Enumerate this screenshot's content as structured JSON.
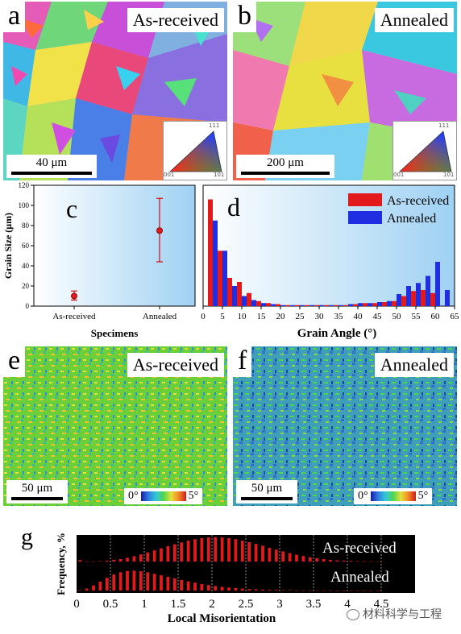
{
  "panel_a": {
    "letter": "a",
    "label": "As-received",
    "scale": "40 μm",
    "key_corners": [
      "111",
      "001",
      "101"
    ]
  },
  "panel_b": {
    "letter": "b",
    "label": "Annealed",
    "scale": "200 μm",
    "key_corners": [
      "111",
      "001",
      "101"
    ]
  },
  "panel_e": {
    "letter": "e",
    "label": "As-received",
    "scale": "50 μm",
    "cbar_min": "0°",
    "cbar_max": "5°"
  },
  "panel_f": {
    "letter": "f",
    "label": "Annealed",
    "scale": "50 μm",
    "cbar_min": "0°",
    "cbar_max": "5°"
  },
  "colors": {
    "as_received": "#e31a1c",
    "annealed": "#1f2ee0",
    "panel_bg": "#9fd1f3"
  },
  "chart_data": [
    {
      "id": "c",
      "type": "scatter",
      "letter": "c",
      "xlabel": "Specimens",
      "ylabel": "Grain Size (μm)",
      "categories": [
        "As-received",
        "Annealed"
      ],
      "values": [
        10,
        75
      ],
      "err_low": [
        6,
        44
      ],
      "err_high": [
        15,
        107
      ],
      "ylim": [
        0,
        120
      ],
      "yticks": [
        "0",
        "20",
        "40",
        "60",
        "80",
        "100",
        "120"
      ]
    },
    {
      "id": "d",
      "type": "bar",
      "letter": "d",
      "xlabel": "Grain Angle (°)",
      "ylabel": "",
      "xlim": [
        0,
        65
      ],
      "ylim": [
        0,
        120
      ],
      "xticks": [
        "0",
        "5",
        "10",
        "15",
        "20",
        "25",
        "30",
        "35",
        "40",
        "45",
        "50",
        "55",
        "60",
        "65"
      ],
      "x": [
        2.5,
        5,
        7.5,
        10,
        12.5,
        15,
        17.5,
        20,
        22.5,
        25,
        27.5,
        30,
        32.5,
        35,
        37.5,
        40,
        42.5,
        45,
        47.5,
        50,
        52.5,
        55,
        57.5,
        60,
        62.5
      ],
      "legend_position": "top-right",
      "series": [
        {
          "name": "As-received",
          "values": [
            106,
            55,
            28,
            24,
            13,
            5,
            3,
            2,
            1,
            1,
            1,
            1,
            1,
            1,
            1,
            2,
            3,
            3,
            4,
            5,
            10,
            15,
            16,
            13,
            0
          ]
        },
        {
          "name": "Annealed",
          "values": [
            85,
            55,
            20,
            10,
            6,
            3,
            2,
            1,
            1,
            1,
            1,
            1,
            1,
            1,
            2,
            3,
            3,
            4,
            5,
            12,
            20,
            23,
            30,
            44,
            16
          ]
        }
      ]
    },
    {
      "id": "g",
      "type": "bar",
      "letter": "g",
      "xlabel": "Local Misorientation",
      "ylabel": "Frequency, %",
      "xlim": [
        0,
        5
      ],
      "xticks": [
        "0",
        "0.5",
        "1",
        "1.5",
        "2",
        "2.5",
        "3",
        "3.5",
        "4",
        "4.5"
      ],
      "series": [
        {
          "name": "As-received",
          "x": [
            0.05,
            0.15,
            0.25,
            0.35,
            0.45,
            0.55,
            0.65,
            0.75,
            0.85,
            0.95,
            1.05,
            1.15,
            1.25,
            1.35,
            1.45,
            1.55,
            1.65,
            1.75,
            1.85,
            1.95,
            2.05,
            2.15,
            2.25,
            2.35,
            2.45,
            2.55,
            2.65,
            2.75,
            2.85,
            2.95,
            3.05,
            3.15,
            3.25,
            3.35,
            3.45,
            3.55,
            3.65,
            3.75,
            3.85,
            3.95,
            4.05,
            4.15,
            4.25,
            4.35,
            4.45
          ],
          "values": [
            0.06,
            0.01,
            0.01,
            0.02,
            0.04,
            0.07,
            0.1,
            0.15,
            0.21,
            0.28,
            0.36,
            0.44,
            0.52,
            0.6,
            0.68,
            0.75,
            0.82,
            0.88,
            0.92,
            0.95,
            0.96,
            0.95,
            0.92,
            0.88,
            0.82,
            0.76,
            0.69,
            0.62,
            0.54,
            0.47,
            0.4,
            0.33,
            0.27,
            0.22,
            0.17,
            0.13,
            0.1,
            0.07,
            0.05,
            0.04,
            0.03,
            0.02,
            0.02,
            0.01,
            0.01
          ]
        },
        {
          "name": "Annealed",
          "x": [
            0.05,
            0.15,
            0.25,
            0.35,
            0.45,
            0.55,
            0.65,
            0.75,
            0.85,
            0.95,
            1.05,
            1.15,
            1.25,
            1.35,
            1.45,
            1.55,
            1.65,
            1.75,
            1.85,
            1.95,
            2.05,
            2.15,
            2.25,
            2.35,
            2.45,
            2.55,
            2.65,
            2.75,
            2.85,
            2.95,
            3.05,
            3.15,
            3.25,
            3.35,
            3.45,
            3.55,
            3.65,
            3.75,
            3.85,
            3.95,
            4.05,
            4.15,
            4.25,
            4.35,
            4.45
          ],
          "values": [
            0.02,
            0.08,
            0.2,
            0.35,
            0.5,
            0.63,
            0.72,
            0.77,
            0.78,
            0.76,
            0.72,
            0.66,
            0.6,
            0.54,
            0.48,
            0.42,
            0.36,
            0.31,
            0.26,
            0.22,
            0.18,
            0.15,
            0.12,
            0.1,
            0.08,
            0.06,
            0.05,
            0.04,
            0.03,
            0.03,
            0.02,
            0.02,
            0.01,
            0.01,
            0.01,
            0.01,
            0.01,
            0.01,
            0.0,
            0.0,
            0.0,
            0.0,
            0.0,
            0.0,
            0.0
          ]
        }
      ]
    }
  ],
  "watermark": "材料科学与工程"
}
